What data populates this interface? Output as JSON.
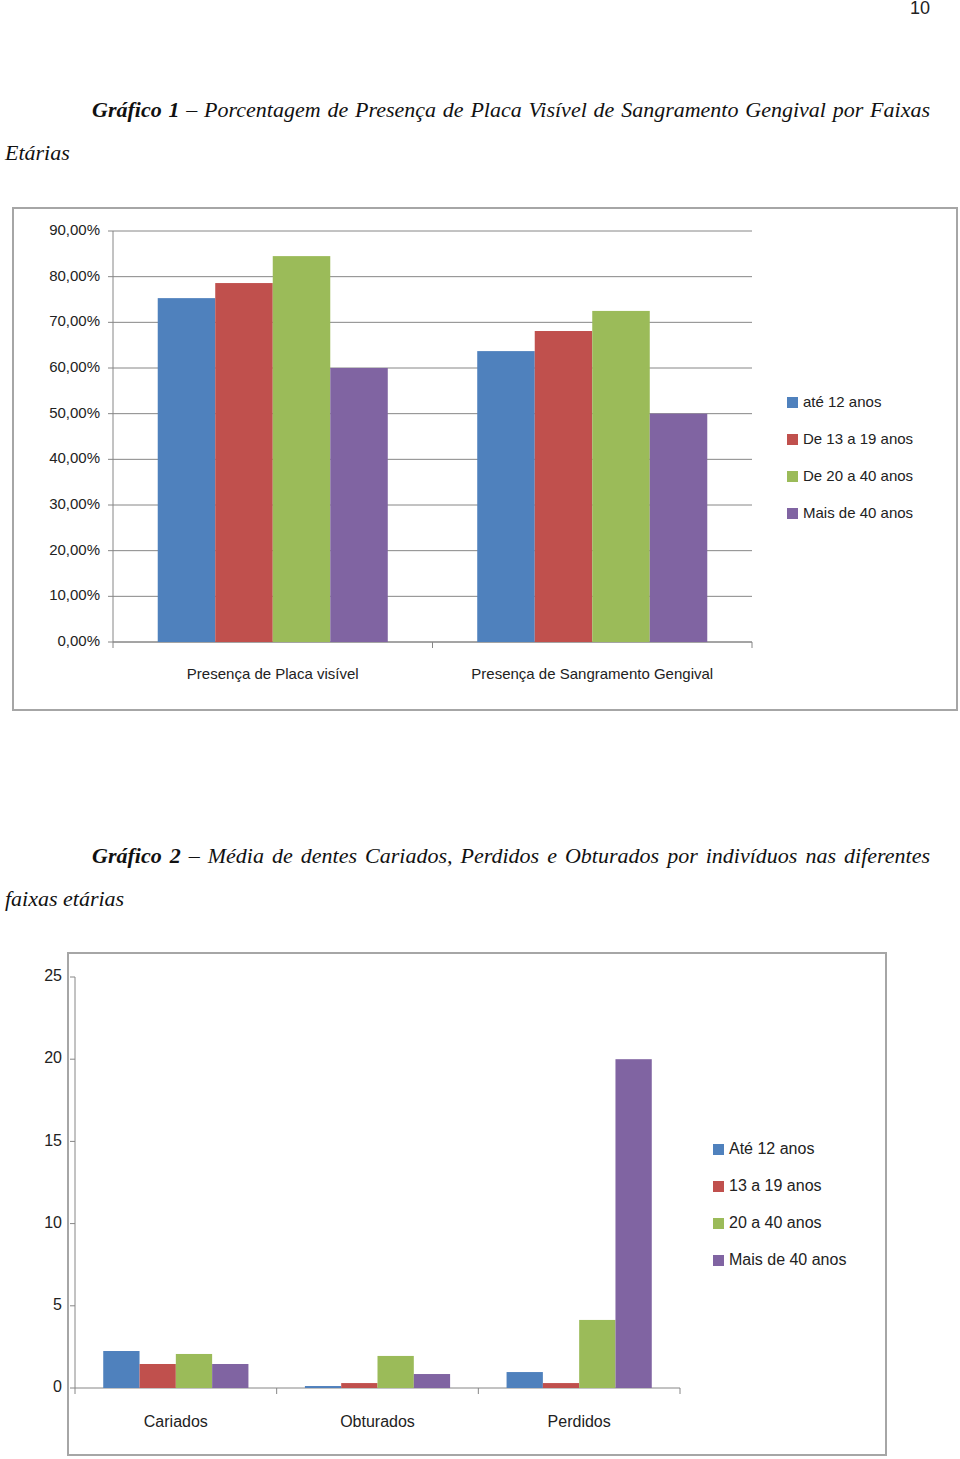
{
  "page": {
    "number": "10"
  },
  "chart_data": [
    {
      "type": "bar",
      "title": "Gráfico 1 – Porcentagem de Presença de Placa Visível de Sangramento Gengival por Faixas Etárias",
      "categories": [
        "Presença de Placa visível",
        "Presença de Sangramento Gengival"
      ],
      "series": [
        {
          "name": "até 12 anos",
          "color": "#4f81bd",
          "values": [
            75.3,
            63.7
          ]
        },
        {
          "name": "De 13 a 19 anos",
          "color": "#c0504d",
          "values": [
            78.6,
            68.1
          ]
        },
        {
          "name": "De 20 a 40 anos",
          "color": "#9bbb59",
          "values": [
            84.5,
            72.5
          ]
        },
        {
          "name": "Mais de 40 anos",
          "color": "#8064a2",
          "values": [
            60.0,
            50.0
          ]
        }
      ],
      "ylim": [
        0,
        90
      ],
      "yticks": [
        {
          "value": 0,
          "label": "0,00%"
        },
        {
          "value": 10,
          "label": "10,00%"
        },
        {
          "value": 20,
          "label": "20,00%"
        },
        {
          "value": 30,
          "label": "30,00%"
        },
        {
          "value": 40,
          "label": "40,00%"
        },
        {
          "value": 50,
          "label": "50,00%"
        },
        {
          "value": 60,
          "label": "60,00%"
        },
        {
          "value": 70,
          "label": "70,00%"
        },
        {
          "value": 80,
          "label": "80,00%"
        },
        {
          "value": 90,
          "label": "90,00%"
        }
      ],
      "grid": true,
      "legend": "right"
    },
    {
      "type": "bar",
      "title": "Gráfico 2 – Média de dentes Cariados, Perdidos e Obturados por indivíduos nas diferentes faixas etárias",
      "categories": [
        "Cariados",
        "Obturados",
        "Perdidos"
      ],
      "series": [
        {
          "name": "Até 12 anos",
          "color": "#4f81bd",
          "values": [
            2.25,
            0.12,
            0.97
          ]
        },
        {
          "name": "13 a 19 anos",
          "color": "#c0504d",
          "values": [
            1.46,
            0.3,
            0.3
          ]
        },
        {
          "name": "20 a 40 anos",
          "color": "#9bbb59",
          "values": [
            2.07,
            1.95,
            4.14
          ]
        },
        {
          "name": "Mais de 40 anos",
          "color": "#8064a2",
          "values": [
            1.46,
            0.85,
            20.0
          ]
        }
      ],
      "ylim": [
        0,
        25
      ],
      "yticks": [
        0,
        5,
        10,
        15,
        20,
        25
      ],
      "grid": false,
      "legend": "right"
    }
  ]
}
